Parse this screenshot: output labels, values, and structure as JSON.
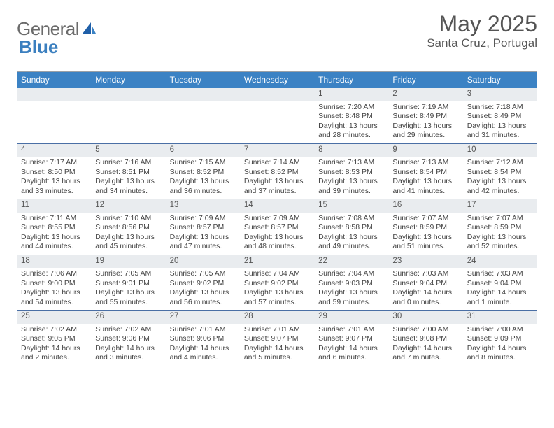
{
  "logo": {
    "word1": "General",
    "word2": "Blue"
  },
  "title": {
    "month": "May 2025",
    "location": "Santa Cruz, Portugal"
  },
  "dow": [
    "Sunday",
    "Monday",
    "Tuesday",
    "Wednesday",
    "Thursday",
    "Friday",
    "Saturday"
  ],
  "colors": {
    "header_bg": "#3b82c4",
    "cell_head_bg": "#e9ecef",
    "week_divider": "#4a6fa5",
    "text": "#555555",
    "logo_gray": "#6b6b6b",
    "logo_blue": "#3b7fbf"
  },
  "weeks": [
    [
      {
        "day": "",
        "lines": [
          "",
          "",
          "",
          ""
        ]
      },
      {
        "day": "",
        "lines": [
          "",
          "",
          "",
          ""
        ]
      },
      {
        "day": "",
        "lines": [
          "",
          "",
          "",
          ""
        ]
      },
      {
        "day": "",
        "lines": [
          "",
          "",
          "",
          ""
        ]
      },
      {
        "day": "1",
        "lines": [
          "Sunrise: 7:20 AM",
          "Sunset: 8:48 PM",
          "Daylight: 13 hours",
          "and 28 minutes."
        ]
      },
      {
        "day": "2",
        "lines": [
          "Sunrise: 7:19 AM",
          "Sunset: 8:49 PM",
          "Daylight: 13 hours",
          "and 29 minutes."
        ]
      },
      {
        "day": "3",
        "lines": [
          "Sunrise: 7:18 AM",
          "Sunset: 8:49 PM",
          "Daylight: 13 hours",
          "and 31 minutes."
        ]
      }
    ],
    [
      {
        "day": "4",
        "lines": [
          "Sunrise: 7:17 AM",
          "Sunset: 8:50 PM",
          "Daylight: 13 hours",
          "and 33 minutes."
        ]
      },
      {
        "day": "5",
        "lines": [
          "Sunrise: 7:16 AM",
          "Sunset: 8:51 PM",
          "Daylight: 13 hours",
          "and 34 minutes."
        ]
      },
      {
        "day": "6",
        "lines": [
          "Sunrise: 7:15 AM",
          "Sunset: 8:52 PM",
          "Daylight: 13 hours",
          "and 36 minutes."
        ]
      },
      {
        "day": "7",
        "lines": [
          "Sunrise: 7:14 AM",
          "Sunset: 8:52 PM",
          "Daylight: 13 hours",
          "and 37 minutes."
        ]
      },
      {
        "day": "8",
        "lines": [
          "Sunrise: 7:13 AM",
          "Sunset: 8:53 PM",
          "Daylight: 13 hours",
          "and 39 minutes."
        ]
      },
      {
        "day": "9",
        "lines": [
          "Sunrise: 7:13 AM",
          "Sunset: 8:54 PM",
          "Daylight: 13 hours",
          "and 41 minutes."
        ]
      },
      {
        "day": "10",
        "lines": [
          "Sunrise: 7:12 AM",
          "Sunset: 8:54 PM",
          "Daylight: 13 hours",
          "and 42 minutes."
        ]
      }
    ],
    [
      {
        "day": "11",
        "lines": [
          "Sunrise: 7:11 AM",
          "Sunset: 8:55 PM",
          "Daylight: 13 hours",
          "and 44 minutes."
        ]
      },
      {
        "day": "12",
        "lines": [
          "Sunrise: 7:10 AM",
          "Sunset: 8:56 PM",
          "Daylight: 13 hours",
          "and 45 minutes."
        ]
      },
      {
        "day": "13",
        "lines": [
          "Sunrise: 7:09 AM",
          "Sunset: 8:57 PM",
          "Daylight: 13 hours",
          "and 47 minutes."
        ]
      },
      {
        "day": "14",
        "lines": [
          "Sunrise: 7:09 AM",
          "Sunset: 8:57 PM",
          "Daylight: 13 hours",
          "and 48 minutes."
        ]
      },
      {
        "day": "15",
        "lines": [
          "Sunrise: 7:08 AM",
          "Sunset: 8:58 PM",
          "Daylight: 13 hours",
          "and 49 minutes."
        ]
      },
      {
        "day": "16",
        "lines": [
          "Sunrise: 7:07 AM",
          "Sunset: 8:59 PM",
          "Daylight: 13 hours",
          "and 51 minutes."
        ]
      },
      {
        "day": "17",
        "lines": [
          "Sunrise: 7:07 AM",
          "Sunset: 8:59 PM",
          "Daylight: 13 hours",
          "and 52 minutes."
        ]
      }
    ],
    [
      {
        "day": "18",
        "lines": [
          "Sunrise: 7:06 AM",
          "Sunset: 9:00 PM",
          "Daylight: 13 hours",
          "and 54 minutes."
        ]
      },
      {
        "day": "19",
        "lines": [
          "Sunrise: 7:05 AM",
          "Sunset: 9:01 PM",
          "Daylight: 13 hours",
          "and 55 minutes."
        ]
      },
      {
        "day": "20",
        "lines": [
          "Sunrise: 7:05 AM",
          "Sunset: 9:02 PM",
          "Daylight: 13 hours",
          "and 56 minutes."
        ]
      },
      {
        "day": "21",
        "lines": [
          "Sunrise: 7:04 AM",
          "Sunset: 9:02 PM",
          "Daylight: 13 hours",
          "and 57 minutes."
        ]
      },
      {
        "day": "22",
        "lines": [
          "Sunrise: 7:04 AM",
          "Sunset: 9:03 PM",
          "Daylight: 13 hours",
          "and 59 minutes."
        ]
      },
      {
        "day": "23",
        "lines": [
          "Sunrise: 7:03 AM",
          "Sunset: 9:04 PM",
          "Daylight: 14 hours",
          "and 0 minutes."
        ]
      },
      {
        "day": "24",
        "lines": [
          "Sunrise: 7:03 AM",
          "Sunset: 9:04 PM",
          "Daylight: 14 hours",
          "and 1 minute."
        ]
      }
    ],
    [
      {
        "day": "25",
        "lines": [
          "Sunrise: 7:02 AM",
          "Sunset: 9:05 PM",
          "Daylight: 14 hours",
          "and 2 minutes."
        ]
      },
      {
        "day": "26",
        "lines": [
          "Sunrise: 7:02 AM",
          "Sunset: 9:06 PM",
          "Daylight: 14 hours",
          "and 3 minutes."
        ]
      },
      {
        "day": "27",
        "lines": [
          "Sunrise: 7:01 AM",
          "Sunset: 9:06 PM",
          "Daylight: 14 hours",
          "and 4 minutes."
        ]
      },
      {
        "day": "28",
        "lines": [
          "Sunrise: 7:01 AM",
          "Sunset: 9:07 PM",
          "Daylight: 14 hours",
          "and 5 minutes."
        ]
      },
      {
        "day": "29",
        "lines": [
          "Sunrise: 7:01 AM",
          "Sunset: 9:07 PM",
          "Daylight: 14 hours",
          "and 6 minutes."
        ]
      },
      {
        "day": "30",
        "lines": [
          "Sunrise: 7:00 AM",
          "Sunset: 9:08 PM",
          "Daylight: 14 hours",
          "and 7 minutes."
        ]
      },
      {
        "day": "31",
        "lines": [
          "Sunrise: 7:00 AM",
          "Sunset: 9:09 PM",
          "Daylight: 14 hours",
          "and 8 minutes."
        ]
      }
    ]
  ]
}
